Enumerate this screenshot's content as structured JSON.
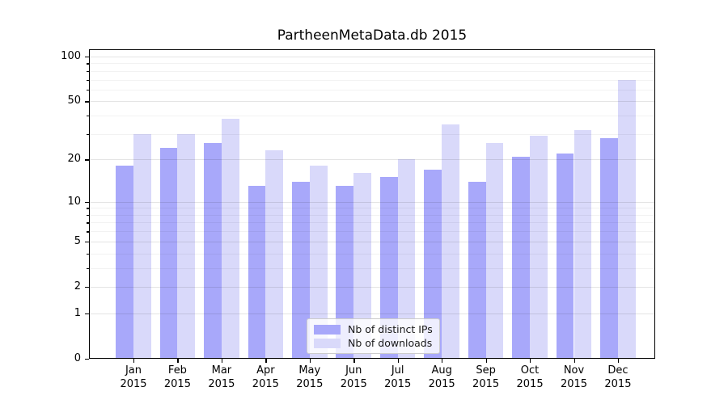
{
  "title": "PartheenMetaData.db 2015",
  "chart_data": {
    "type": "bar",
    "title": "PartheenMetaData.db 2015",
    "categories": [
      "Jan",
      "Feb",
      "Mar",
      "Apr",
      "May",
      "Jun",
      "Jul",
      "Aug",
      "Sep",
      "Oct",
      "Nov",
      "Dec"
    ],
    "year_label": "2015",
    "series": [
      {
        "name": "Nb of distinct IPs",
        "color": "#a8a8fa",
        "values": [
          18,
          24,
          26,
          13,
          14,
          13,
          15,
          17,
          14,
          21,
          22,
          28
        ]
      },
      {
        "name": "Nb of downloads",
        "color": "#d9d9fa",
        "values": [
          30,
          30,
          38,
          23,
          18,
          16,
          20,
          35,
          26,
          29,
          32,
          70
        ]
      }
    ],
    "yscale": "log1p",
    "ylim": [
      0,
      112
    ],
    "y_major_ticks": [
      100,
      50,
      20,
      10,
      5,
      2,
      1,
      0
    ],
    "y_minor_ticks": [
      3,
      4,
      6,
      7,
      8,
      9,
      30,
      40,
      60,
      70,
      80,
      90
    ],
    "grid": true,
    "legend_position": "lower center",
    "xlabel": "",
    "ylabel": ""
  }
}
